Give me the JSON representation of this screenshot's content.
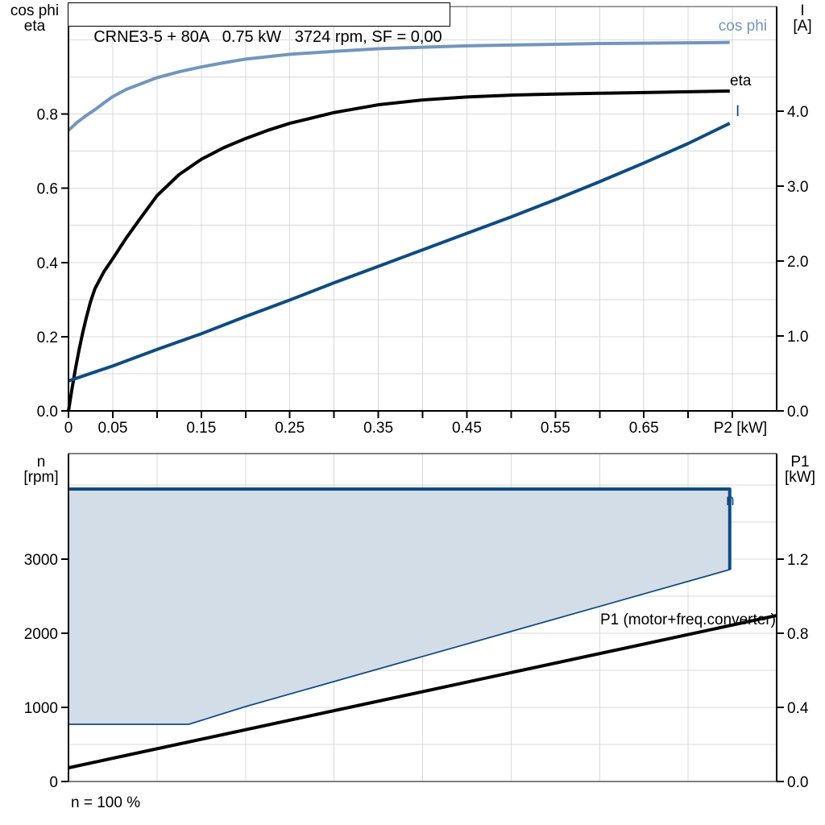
{
  "header": {
    "title": "CRNE3-5 + 80A   0.75 kW   3724 rpm, SF = 0,00"
  },
  "labels": {
    "top_left_axis": [
      "cos phi",
      "eta"
    ],
    "top_right_axis": [
      "I",
      "[A]"
    ],
    "bottom_left_axis": [
      "n",
      "[rpm]"
    ],
    "bottom_right_axis": [
      "P1",
      "[kW]"
    ],
    "curve_cos_phi": "cos phi",
    "curve_eta": "eta",
    "curve_current": "I",
    "curve_speed": "n",
    "curve_p1": "P1 (motor+freq.converter)",
    "footer": "n = 100 %"
  },
  "colors": {
    "cos_phi": "#7296bc",
    "dark_blue": "#0e4c82",
    "black": "#000000",
    "speed_fill": "#d3dde8",
    "grid": "#d9d9d9",
    "frame_gray": "#808080"
  },
  "chart_data": [
    {
      "type": "line",
      "title": "CRNE3-5 + 80A   0.75 kW   3724 rpm, SF = 0,00",
      "xlabel": "P2 [kW]",
      "x_axis": {
        "range": [
          0,
          0.8
        ],
        "tick_step": 0.05,
        "grid_step": 0.05,
        "labeled_ticks": [
          0,
          0.05,
          0.15,
          0.25,
          0.35,
          0.45,
          0.55,
          0.65
        ],
        "tick_labels": [
          "0",
          "0.05",
          "0.15",
          "0.25",
          "0.35",
          "0.45",
          "0.55",
          "0.65"
        ],
        "unit_label": "P2 [kW]",
        "unit_label_x": 0.759
      },
      "left_axis": {
        "title": "cos phi / eta",
        "range": [
          0,
          1.09
        ],
        "grid_step": 0.1,
        "tick_values": [
          0,
          0.2,
          0.4,
          0.6,
          0.8
        ],
        "tick_labels": [
          "0.0",
          "0.2",
          "0.4",
          "0.6",
          "0.8"
        ]
      },
      "right_axis": {
        "title": "I [A]",
        "range": [
          0,
          5.4
        ],
        "tick_values": [
          0,
          1,
          2,
          3,
          4
        ],
        "tick_labels": [
          "0.0",
          "1.0",
          "2.0",
          "3.0",
          "4.0"
        ]
      },
      "series": [
        {
          "name": "cos phi",
          "axis": "left",
          "color": "#7296bc",
          "width": 4,
          "x": [
            0,
            0.01,
            0.02,
            0.03,
            0.04,
            0.05,
            0.065,
            0.08,
            0.1,
            0.125,
            0.15,
            0.175,
            0.2,
            0.25,
            0.3,
            0.35,
            0.4,
            0.45,
            0.5,
            0.55,
            0.6,
            0.65,
            0.7,
            0.747
          ],
          "y": [
            0.756,
            0.778,
            0.796,
            0.812,
            0.83,
            0.847,
            0.866,
            0.88,
            0.898,
            0.914,
            0.927,
            0.938,
            0.948,
            0.961,
            0.969,
            0.976,
            0.98,
            0.984,
            0.986,
            0.988,
            0.99,
            0.991,
            0.992,
            0.993
          ]
        },
        {
          "name": "eta",
          "axis": "left",
          "color": "#000000",
          "width": 4,
          "x": [
            0,
            0.004,
            0.008,
            0.012,
            0.016,
            0.02,
            0.025,
            0.03,
            0.04,
            0.05,
            0.065,
            0.08,
            0.1,
            0.125,
            0.15,
            0.175,
            0.2,
            0.225,
            0.25,
            0.3,
            0.35,
            0.4,
            0.45,
            0.5,
            0.55,
            0.6,
            0.65,
            0.7,
            0.747
          ],
          "y": [
            0,
            0.06,
            0.115,
            0.165,
            0.21,
            0.25,
            0.295,
            0.33,
            0.375,
            0.41,
            0.465,
            0.515,
            0.58,
            0.637,
            0.678,
            0.709,
            0.734,
            0.756,
            0.775,
            0.804,
            0.825,
            0.838,
            0.846,
            0.851,
            0.854,
            0.856,
            0.858,
            0.86,
            0.862
          ]
        },
        {
          "name": "I",
          "axis": "right",
          "color": "#0e4c82",
          "width": 4,
          "x": [
            0,
            0.05,
            0.1,
            0.15,
            0.2,
            0.25,
            0.3,
            0.35,
            0.4,
            0.45,
            0.5,
            0.55,
            0.6,
            0.65,
            0.7,
            0.747
          ],
          "y": [
            0.4,
            0.6,
            0.82,
            1.03,
            1.26,
            1.48,
            1.71,
            1.93,
            2.15,
            2.37,
            2.59,
            2.82,
            3.06,
            3.31,
            3.57,
            3.84
          ]
        }
      ]
    },
    {
      "type": "area+line",
      "title": "Speed range and input power",
      "x_axis": {
        "range": [
          0,
          0.8
        ],
        "grid_step": 0.1
      },
      "left_axis": {
        "title": "n [rpm]",
        "range": [
          0,
          4424
        ],
        "grid_step": 500,
        "tick_values": [
          0,
          1000,
          2000,
          3000
        ],
        "tick_labels": [
          "0",
          "1000",
          "2000",
          "3000"
        ]
      },
      "right_axis": {
        "title": "P1 [kW]",
        "range": [
          0,
          1.77
        ],
        "tick_values": [
          0,
          0.4,
          0.8,
          1.2
        ],
        "tick_labels": [
          "0.0",
          "0.4",
          "0.8",
          "1.2"
        ]
      },
      "series": [
        {
          "name": "n",
          "type": "area",
          "axis": "left",
          "fill": "#d3dde8",
          "stroke": "#0e4c82",
          "polygon": [
            [
              0,
              3946
            ],
            [
              0.747,
              3946
            ],
            [
              0.747,
              2859
            ],
            [
              0.2,
              1011
            ],
            [
              0.136,
              772
            ],
            [
              0,
              772
            ]
          ],
          "bold_edge": [
            [
              0,
              3946
            ],
            [
              0.747,
              3946
            ],
            [
              0.747,
              2859
            ]
          ]
        },
        {
          "name": "P1 (motor+freq.converter)",
          "type": "line",
          "axis": "right",
          "color": "#000000",
          "width": 4,
          "x": [
            0,
            0.8
          ],
          "y": [
            0.074,
            0.896
          ]
        }
      ],
      "footnote": "n = 100 %"
    }
  ]
}
